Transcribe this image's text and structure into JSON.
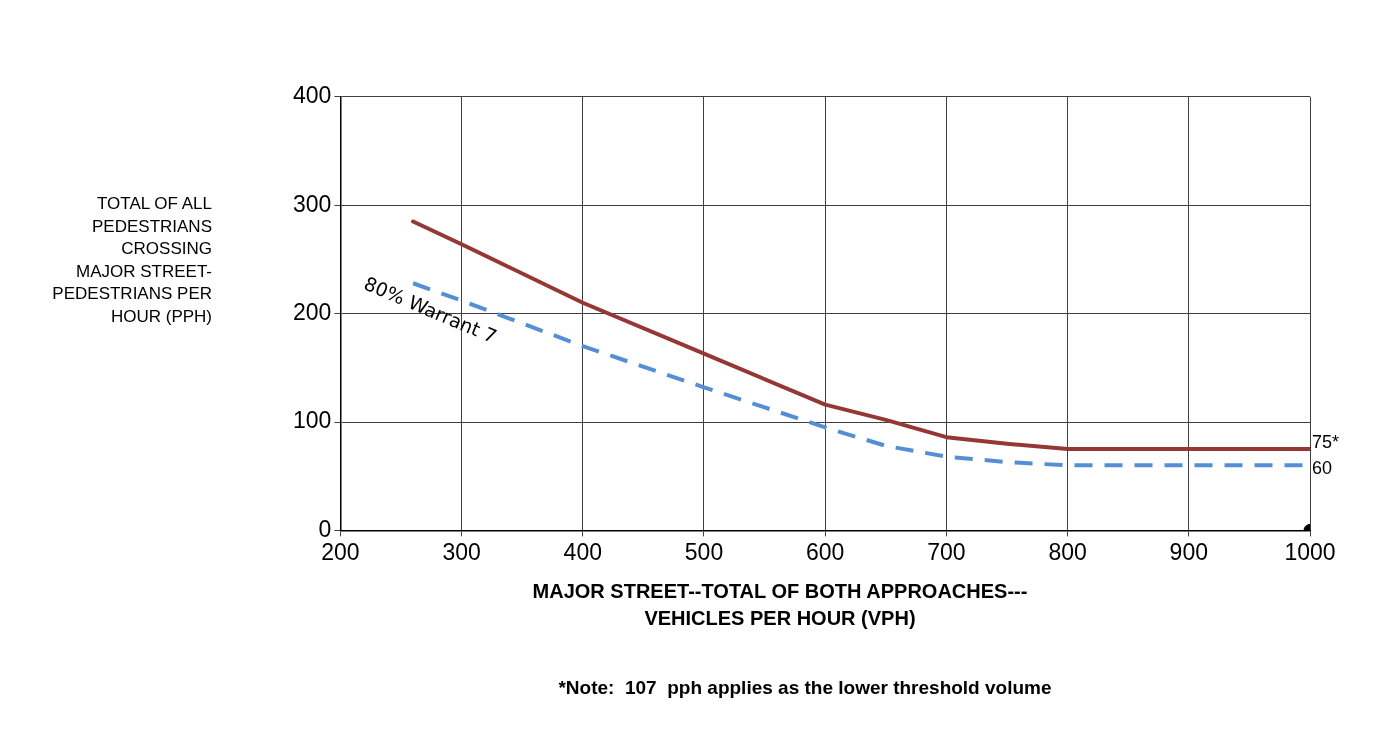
{
  "chart_data": {
    "type": "line",
    "ylabel": "TOTAL OF ALL\nPEDESTRIANS\nCROSSING\nMAJOR STREET-\nPEDESTRIANS PER\nHOUR (PPH)",
    "xlabel": "MAJOR STREET--TOTAL OF BOTH APPROACHES---\nVEHICLES PER HOUR (VPH)",
    "xlim": [
      200,
      1000
    ],
    "xticks": [
      200,
      300,
      400,
      500,
      600,
      700,
      800,
      900,
      1000
    ],
    "ylim": [
      0,
      400
    ],
    "yticks": [
      0,
      100,
      200,
      300,
      400
    ],
    "grid": true,
    "legend": false,
    "series": [
      {
        "color": "#953735",
        "line_style": "solid",
        "x": [
          260,
          300,
          400,
          500,
          600,
          650,
          700,
          750,
          800,
          1000
        ],
        "values": [
          285,
          264,
          210,
          163,
          116,
          102,
          86,
          80,
          75,
          75
        ]
      },
      {
        "name": "80% Warrant 7",
        "color": "#558ed5",
        "line_style": "dashed",
        "x": [
          260,
          300,
          400,
          500,
          600,
          650,
          700,
          750,
          800,
          1000
        ],
        "values": [
          228,
          212,
          170,
          132,
          95,
          78,
          68,
          63,
          60,
          60
        ]
      },
      {
        "type": "scatter",
        "color": "#000000",
        "marker": "circle",
        "x": [
          1000
        ],
        "values": [
          0
        ]
      }
    ],
    "annotations": [
      {
        "text": "75*",
        "x": 1000,
        "y": 75
      },
      {
        "text": "60",
        "x": 1000,
        "y": 60
      },
      "*Note:  107  pph applies as the lower threshold volume"
    ]
  }
}
